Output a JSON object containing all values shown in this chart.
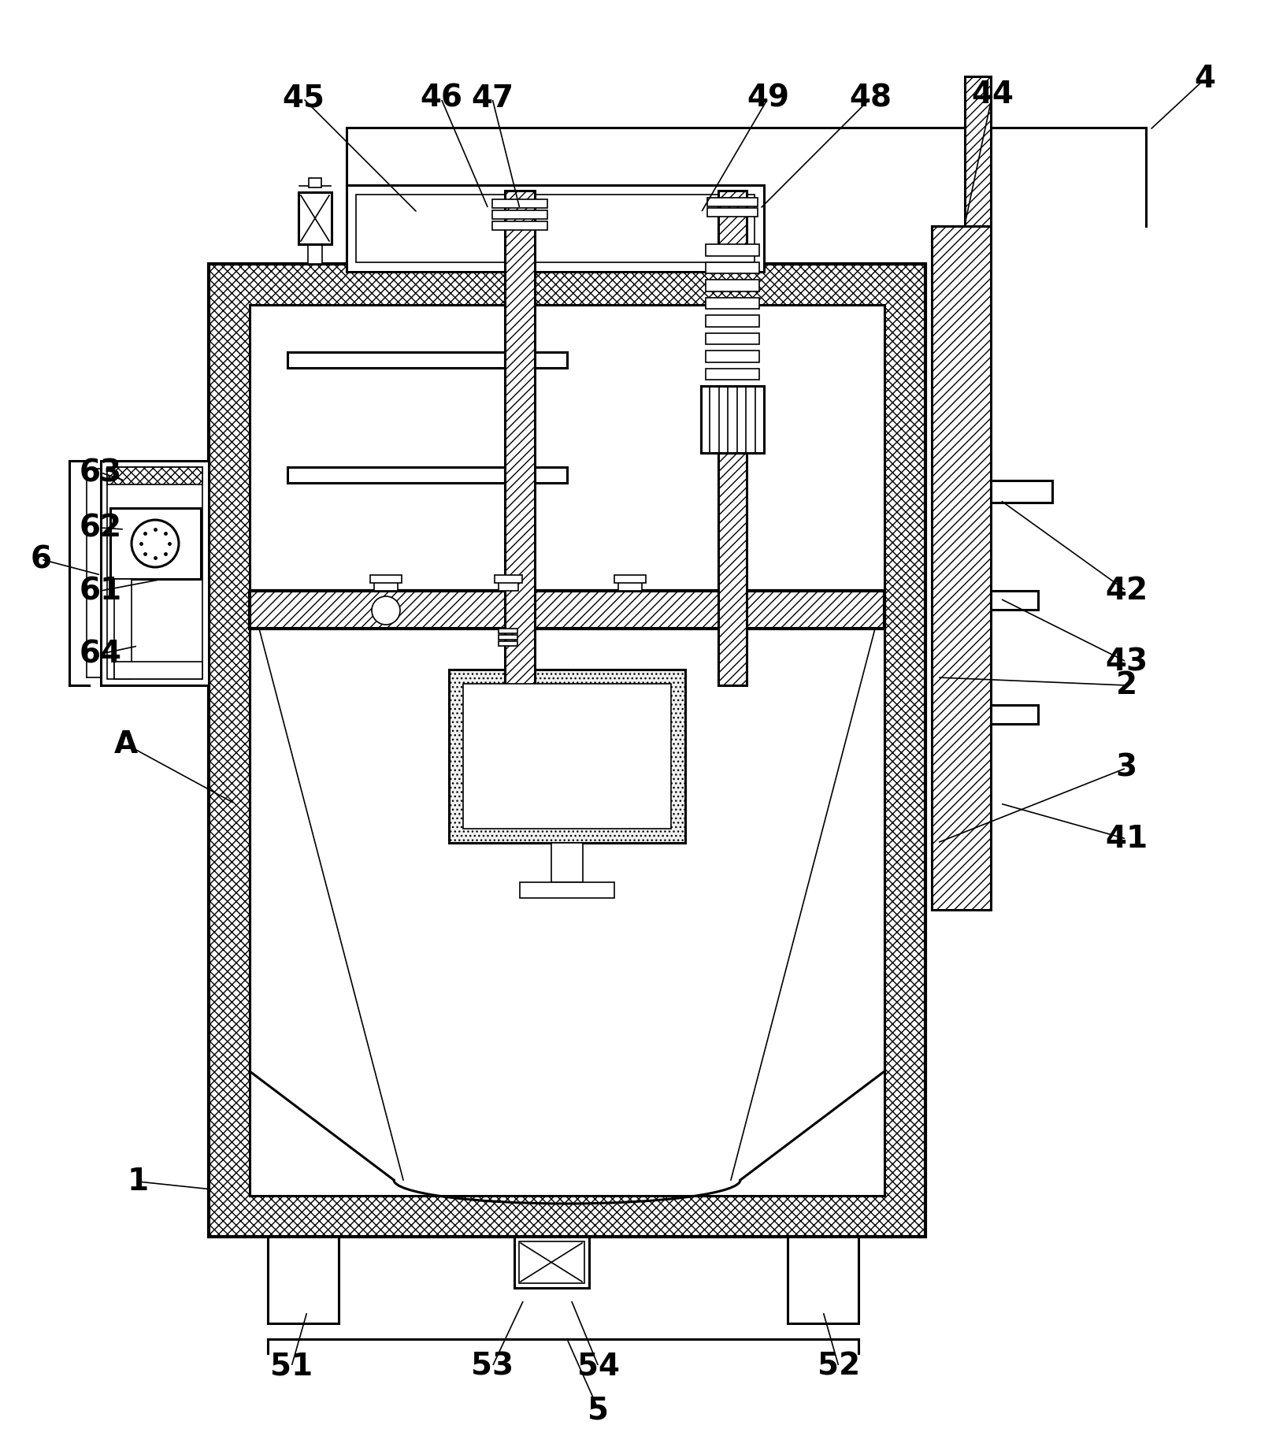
{
  "bg_color": "#ffffff",
  "line_color": "#000000",
  "font_size": 28,
  "labels_data": [
    [
      "1",
      175,
      1500,
      270,
      1510
    ],
    [
      "2",
      1430,
      870,
      1190,
      860
    ],
    [
      "3",
      1430,
      975,
      1190,
      1070
    ],
    [
      "4",
      1530,
      100,
      1460,
      165
    ],
    [
      "5",
      760,
      1790,
      720,
      1700
    ],
    [
      "6",
      52,
      710,
      128,
      730
    ],
    [
      "41",
      1430,
      1065,
      1270,
      1020
    ],
    [
      "42",
      1430,
      750,
      1270,
      635
    ],
    [
      "43",
      1430,
      840,
      1270,
      760
    ],
    [
      "44",
      1260,
      120,
      1225,
      285
    ],
    [
      "45",
      385,
      125,
      530,
      270
    ],
    [
      "46",
      560,
      125,
      620,
      265
    ],
    [
      "47",
      625,
      125,
      660,
      265
    ],
    [
      "48",
      1105,
      125,
      965,
      265
    ],
    [
      "49",
      975,
      125,
      890,
      270
    ],
    [
      "51",
      370,
      1735,
      390,
      1665
    ],
    [
      "52",
      1065,
      1735,
      1045,
      1665
    ],
    [
      "53",
      625,
      1735,
      665,
      1650
    ],
    [
      "54",
      760,
      1735,
      725,
      1650
    ],
    [
      "61",
      128,
      750,
      207,
      735
    ],
    [
      "62",
      128,
      670,
      158,
      672
    ],
    [
      "63",
      128,
      600,
      158,
      610
    ],
    [
      "64",
      128,
      830,
      175,
      820
    ],
    [
      "A",
      160,
      945,
      298,
      1020
    ]
  ]
}
